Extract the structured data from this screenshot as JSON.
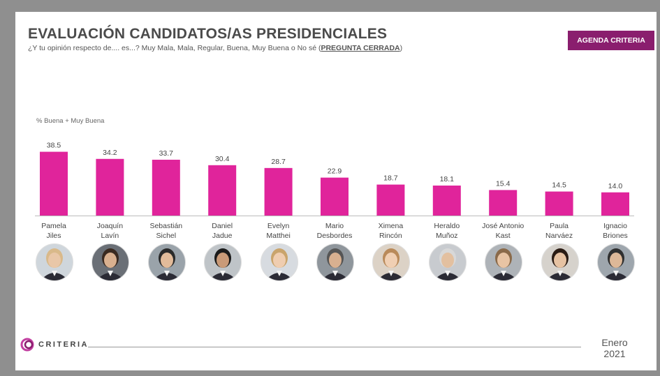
{
  "header": {
    "title": "EVALUACIÓN CANDIDATOS/AS PRESIDENCIALES",
    "subtitle_prefix": "¿Y tu opinión respecto de.... es...? Muy Mala, Mala, Regular, Buena, Muy Buena o No sé (",
    "subtitle_emphasis": "PREGUNTA CERRADA",
    "subtitle_suffix": ")",
    "badge": "AGENDA CRITERIA"
  },
  "footer": {
    "logo_text": "CRITERIA",
    "date_month": "Enero",
    "date_year": "2021"
  },
  "colors": {
    "bar": "#e0249b",
    "badge": "#8a1e6e"
  },
  "chart_data": {
    "type": "bar",
    "ylabel": "% Buena + Muy Buena",
    "ylim": [
      0,
      40
    ],
    "grid": false,
    "legend": "none",
    "categories": [
      "Pamela\nJiles",
      "Joaquín\nLavín",
      "Sebastián\nSichel",
      "Daniel\nJadue",
      "Evelyn\nMatthei",
      "Mario\nDesbordes",
      "Ximena\nRincón",
      "Heraldo\nMuñoz",
      "José Antonio\nKast",
      "Paula\nNarváez",
      "Ignacio\nBriones"
    ],
    "values": [
      38.5,
      34.2,
      33.7,
      30.4,
      28.7,
      22.9,
      18.7,
      18.1,
      15.4,
      14.5,
      14.0
    ],
    "labels": [
      "38.5",
      "34.2",
      "33.7",
      "30.4",
      "28.7",
      "22.9",
      "18.7",
      "18.1",
      "15.4",
      "14.5",
      "14.0"
    ]
  }
}
